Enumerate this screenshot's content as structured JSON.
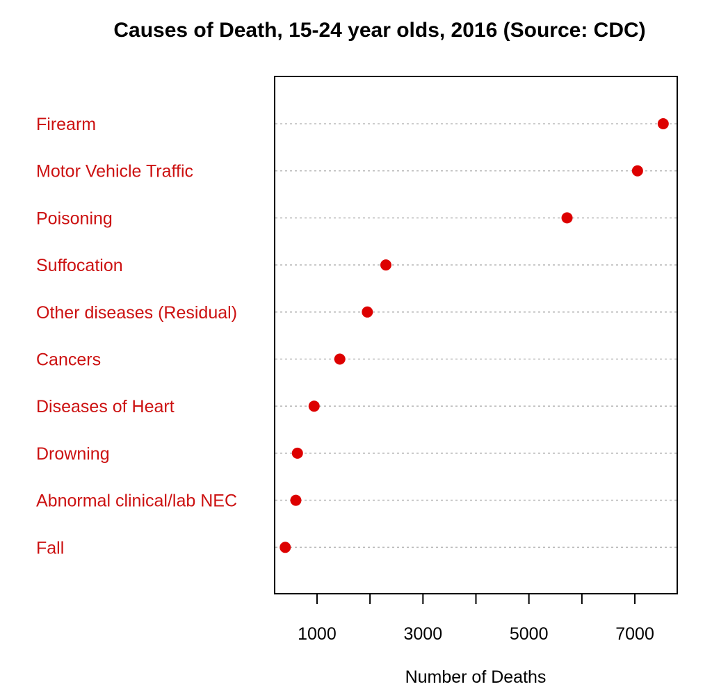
{
  "chart_data": {
    "type": "scatter",
    "title": "Causes of Death, 15-24 year olds, 2016 (Source: CDC)",
    "xlabel": "Number of Deaths",
    "ylabel": "",
    "xlim": [
      200,
      7800
    ],
    "xticks": [
      1000,
      2000,
      3000,
      4000,
      5000,
      6000,
      7000
    ],
    "xtick_labels": [
      "1000",
      "",
      "3000",
      "",
      "5000",
      "",
      "7000"
    ],
    "grid": "horizontal dotted guide lines per category",
    "legend": "none",
    "colors": {
      "point": "#dd0000",
      "category_label": "#cc1111",
      "guide": "#bbbbbb",
      "axis": "#000000"
    },
    "categories": [
      "Firearm",
      "Motor Vehicle Traffic",
      "Poisoning",
      "Suffocation",
      "Other diseases (Residual)",
      "Cancers",
      "Diseases of Heart",
      "Drowning",
      "Abnormal clinical/lab NEC",
      "Fall"
    ],
    "values": [
      7535,
      7050,
      5720,
      2300,
      1950,
      1430,
      945,
      630,
      600,
      400
    ]
  }
}
